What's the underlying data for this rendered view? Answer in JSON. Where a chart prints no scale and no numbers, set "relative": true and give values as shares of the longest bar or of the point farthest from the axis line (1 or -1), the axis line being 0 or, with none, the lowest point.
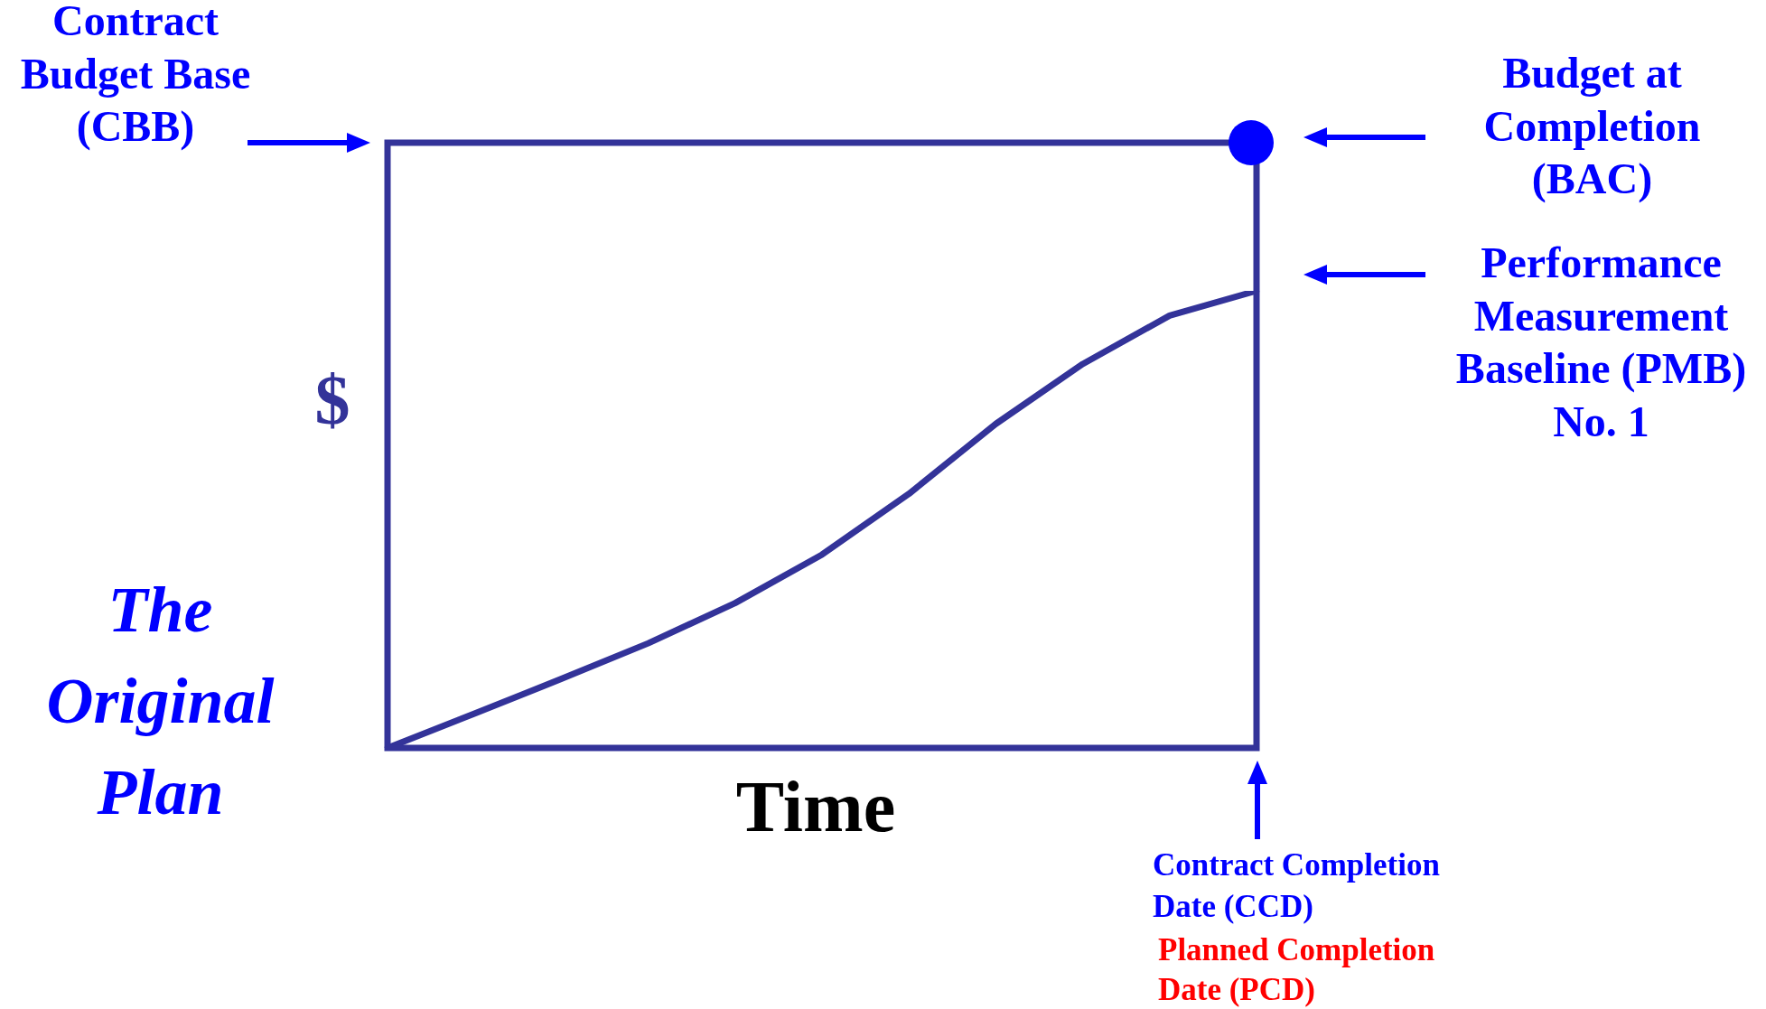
{
  "chart_data": {
    "type": "line",
    "relative": true,
    "xlabel": "Time",
    "ylabel": "$",
    "categories": [
      null,
      null,
      null,
      null,
      null,
      null,
      null,
      null,
      null,
      null,
      null
    ],
    "series": [
      {
        "color": "#333399",
        "values": [
          0,
          0.075,
          0.151,
          0.229,
          0.317,
          0.423,
          0.556,
          0.709,
          0.84,
          0.946,
          1
        ]
      }
    ],
    "annotations": [
      "Contract Budget Base (CBB)",
      "Budget at Completion (BAC)",
      "Performance Measurement Baseline (PMB) No. 1",
      "Contract Completion Date (CCD)",
      "Planned Completion Date (PCD)",
      "The Original Plan"
    ],
    "legend": false
  }
}
